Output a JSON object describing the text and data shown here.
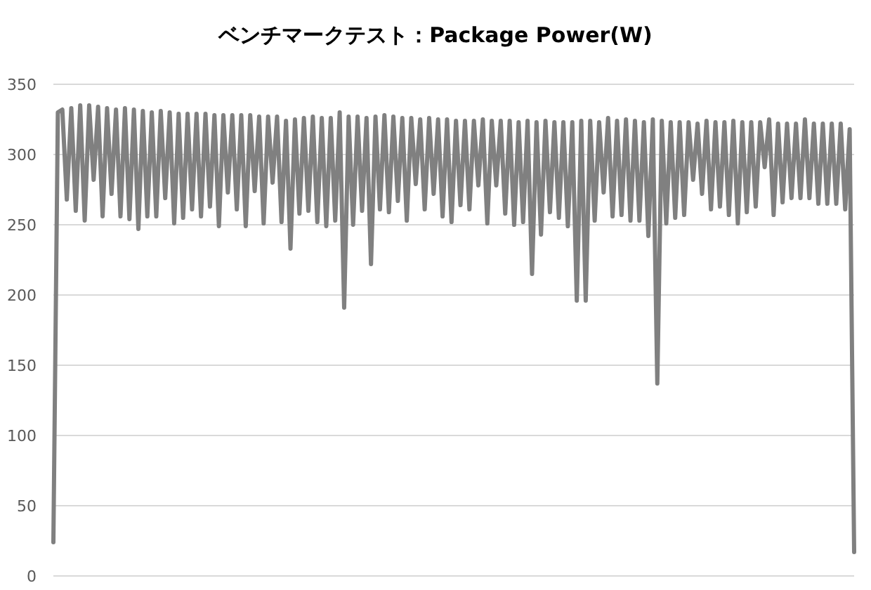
{
  "chart_data": {
    "type": "line",
    "title": "ベンチマークテスト：Package Power(W)",
    "categories": [
      null,
      null,
      null,
      null,
      null,
      null,
      null,
      null,
      null,
      null,
      null,
      null,
      null,
      null,
      null,
      null,
      null,
      null,
      null,
      null,
      null,
      null,
      null,
      null,
      null,
      null,
      null,
      null,
      null,
      null,
      null,
      null,
      null,
      null,
      null,
      null,
      null,
      null,
      null,
      null,
      null,
      null,
      null,
      null,
      null,
      null,
      null,
      null,
      null,
      null,
      null,
      null,
      null,
      null,
      null,
      null,
      null,
      null,
      null,
      null,
      null,
      null,
      null,
      null,
      null,
      null,
      null,
      null,
      null,
      null,
      null,
      null,
      null,
      null,
      null,
      null,
      null,
      null,
      null,
      null,
      null,
      null,
      null,
      null,
      null,
      null,
      null,
      null,
      null,
      null,
      null,
      null,
      null,
      null,
      null,
      null,
      null,
      null,
      null,
      null,
      null,
      null,
      null,
      null,
      null,
      null,
      null,
      null,
      null,
      null,
      null,
      null,
      null,
      null,
      null,
      null,
      null,
      null,
      null,
      null,
      null,
      null,
      null,
      null,
      null,
      null,
      null,
      null,
      null,
      null,
      null,
      null,
      null,
      null,
      null,
      null,
      null,
      null,
      null,
      null,
      null,
      null,
      null,
      null,
      null,
      null,
      null,
      null,
      null,
      null,
      null,
      null,
      null,
      null,
      null,
      null,
      null,
      null,
      null,
      null,
      null,
      null,
      null,
      null,
      null,
      null,
      null,
      null,
      null,
      null,
      null,
      null,
      null,
      null,
      null,
      null,
      null,
      null,
      null,
      null
    ],
    "series": [
      {
        "color": "#808080",
        "values": [
          24,
          330,
          332,
          268,
          333,
          260,
          335,
          253,
          335,
          282,
          334,
          256,
          333,
          272,
          332,
          256,
          333,
          254,
          332,
          247,
          331,
          256,
          330,
          256,
          331,
          269,
          330,
          251,
          329,
          255,
          329,
          261,
          329,
          256,
          329,
          263,
          328,
          249,
          328,
          273,
          328,
          261,
          328,
          249,
          328,
          274,
          327,
          251,
          327,
          280,
          327,
          252,
          324,
          233,
          325,
          258,
          326,
          260,
          327,
          252,
          326,
          249,
          326,
          253,
          330,
          191,
          327,
          250,
          327,
          260,
          326,
          222,
          327,
          261,
          328,
          259,
          327,
          267,
          326,
          253,
          326,
          279,
          325,
          261,
          326,
          272,
          325,
          256,
          325,
          252,
          324,
          264,
          324,
          261,
          324,
          278,
          325,
          251,
          324,
          278,
          324,
          258,
          324,
          250,
          323,
          252,
          324,
          215,
          323,
          243,
          324,
          259,
          323,
          255,
          323,
          249,
          323,
          196,
          324,
          196,
          324,
          253,
          323,
          273,
          326,
          256,
          324,
          257,
          325,
          253,
          324,
          253,
          323,
          242,
          325,
          137,
          324,
          251,
          323,
          255,
          323,
          257,
          323,
          282,
          322,
          272,
          324,
          261,
          323,
          263,
          323,
          257,
          324,
          251,
          323,
          259,
          323,
          263,
          323,
          291,
          325,
          257,
          322,
          266,
          322,
          269,
          322,
          269,
          325,
          269,
          322,
          265,
          322,
          265,
          322,
          265,
          322,
          261,
          318,
          17
        ]
      }
    ],
    "ylim": [
      0,
      350
    ],
    "yticks": [
      0,
      50,
      100,
      150,
      200,
      250,
      300,
      350
    ],
    "grid": "y",
    "marker": "none",
    "line_style": "solid"
  }
}
